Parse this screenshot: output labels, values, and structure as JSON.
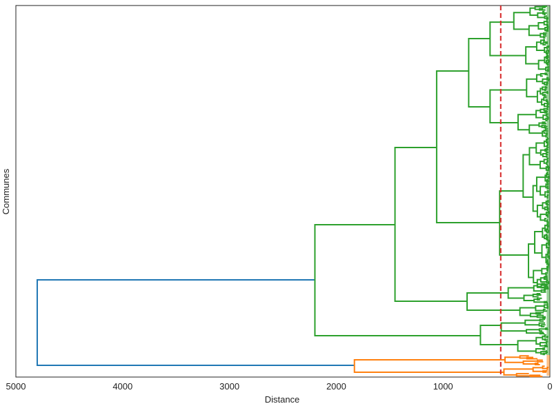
{
  "chart_data": {
    "type": "dendrogram",
    "orientation": "left",
    "title": "",
    "xlabel": "Distance",
    "ylabel": "Communes",
    "xlim": [
      5000,
      0
    ],
    "xticks": [
      5000,
      4000,
      3000,
      2000,
      1000,
      0
    ],
    "threshold": {
      "value": 460,
      "color": "#d62728",
      "style": "dashed"
    },
    "grid": false,
    "legend": "none",
    "colors": {
      "link_root": "#1f77b4",
      "cluster_1": "#2ca02c",
      "cluster_2": "#ff7f0e"
    },
    "merges": [
      {
        "name": "root",
        "height": 4800,
        "color": "#1f77b4"
      },
      {
        "name": "cluster-2-top",
        "height": 1830,
        "color": "#ff7f0e"
      },
      {
        "name": "cluster-1-top",
        "height": 2200,
        "color": "#2ca02c"
      },
      {
        "name": "green-upper",
        "height": 1450,
        "color": "#2ca02c"
      },
      {
        "name": "green-lower",
        "height": 650,
        "color": "#2ca02c"
      },
      {
        "name": "green-mid",
        "height": 1060,
        "color": "#2ca02c"
      },
      {
        "name": "green-small",
        "height": 775,
        "color": "#2ca02c"
      },
      {
        "name": "green-top",
        "height": 760,
        "color": "#2ca02c"
      },
      {
        "name": "green-middle",
        "height": 470,
        "color": "#2ca02c"
      }
    ]
  }
}
